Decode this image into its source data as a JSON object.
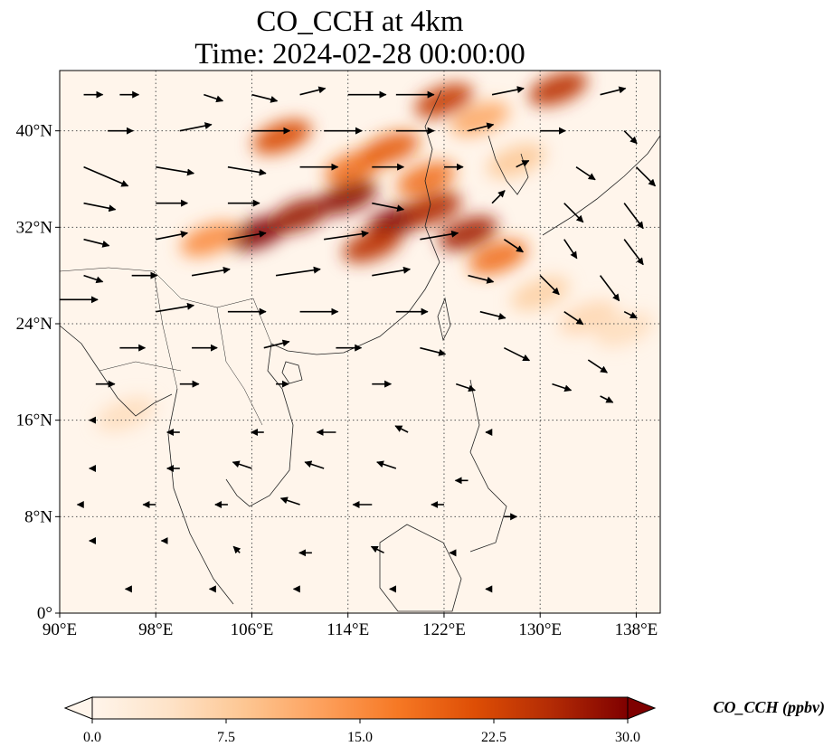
{
  "title": {
    "line1": "CO_CCH at 4km",
    "line2": "Time: 2024-02-28 00:00:00"
  },
  "map": {
    "lon_range": [
      90,
      140
    ],
    "lat_range": [
      0,
      45
    ],
    "lon_ticks": [
      {
        "value": 90,
        "label": "90°E"
      },
      {
        "value": 98,
        "label": "98°E"
      },
      {
        "value": 106,
        "label": "106°E"
      },
      {
        "value": 114,
        "label": "114°E"
      },
      {
        "value": 122,
        "label": "122°E"
      },
      {
        "value": 130,
        "label": "130°E"
      },
      {
        "value": 138,
        "label": "138°E"
      }
    ],
    "lat_ticks": [
      {
        "value": 0,
        "label": "0°"
      },
      {
        "value": 8,
        "label": "8°N"
      },
      {
        "value": 16,
        "label": "16°N"
      },
      {
        "value": 24,
        "label": "24°N"
      },
      {
        "value": 32,
        "label": "32°N"
      },
      {
        "value": 40,
        "label": "40°N"
      }
    ],
    "gridlines": true,
    "background_color": "#fff5eb",
    "plumes": [
      {
        "lon": 106.5,
        "lat": 31.5,
        "value": 30
      },
      {
        "lon": 110.0,
        "lat": 33.0,
        "value": 28
      },
      {
        "lon": 114.0,
        "lat": 34.5,
        "value": 29
      },
      {
        "lon": 118.0,
        "lat": 32.5,
        "value": 30
      },
      {
        "lon": 121.0,
        "lat": 33.5,
        "value": 26
      },
      {
        "lon": 116.0,
        "lat": 30.5,
        "value": 25
      },
      {
        "lon": 124.0,
        "lat": 31.5,
        "value": 27
      },
      {
        "lon": 126.5,
        "lat": 29.5,
        "value": 18
      },
      {
        "lon": 108.5,
        "lat": 39.5,
        "value": 22
      },
      {
        "lon": 114.5,
        "lat": 37.0,
        "value": 18
      },
      {
        "lon": 117.5,
        "lat": 38.5,
        "value": 20
      },
      {
        "lon": 120.5,
        "lat": 36.0,
        "value": 18
      },
      {
        "lon": 122.0,
        "lat": 42.5,
        "value": 24
      },
      {
        "lon": 125.0,
        "lat": 41.0,
        "value": 12
      },
      {
        "lon": 131.5,
        "lat": 43.5,
        "value": 25
      },
      {
        "lon": 128.0,
        "lat": 37.5,
        "value": 8
      },
      {
        "lon": 130.0,
        "lat": 26.5,
        "value": 7
      },
      {
        "lon": 134.0,
        "lat": 24.5,
        "value": 6
      },
      {
        "lon": 137.0,
        "lat": 23.5,
        "value": 5
      },
      {
        "lon": 102.5,
        "lat": 31.0,
        "value": 15
      },
      {
        "lon": 95.5,
        "lat": 16.5,
        "value": 5
      }
    ],
    "wind_vectors": [
      {
        "lon": 92,
        "lat": 43,
        "u": 3,
        "v": 0
      },
      {
        "lon": 95,
        "lat": 43,
        "u": 3,
        "v": 0
      },
      {
        "lon": 102,
        "lat": 43,
        "u": 3,
        "v": -1
      },
      {
        "lon": 106,
        "lat": 43,
        "u": 4,
        "v": -1
      },
      {
        "lon": 110,
        "lat": 43,
        "u": 4,
        "v": 1
      },
      {
        "lon": 114,
        "lat": 43,
        "u": 6,
        "v": 0
      },
      {
        "lon": 118,
        "lat": 43,
        "u": 6,
        "v": 0
      },
      {
        "lon": 126,
        "lat": 43,
        "u": 5,
        "v": 1
      },
      {
        "lon": 135,
        "lat": 43,
        "u": 4,
        "v": 1
      },
      {
        "lon": 94,
        "lat": 40,
        "u": 4,
        "v": 0
      },
      {
        "lon": 100,
        "lat": 40,
        "u": 5,
        "v": 1
      },
      {
        "lon": 106,
        "lat": 40,
        "u": 6,
        "v": 0
      },
      {
        "lon": 112,
        "lat": 40,
        "u": 6,
        "v": 0
      },
      {
        "lon": 118,
        "lat": 40,
        "u": 6,
        "v": 0
      },
      {
        "lon": 124,
        "lat": 40,
        "u": 4,
        "v": 1
      },
      {
        "lon": 130,
        "lat": 40,
        "u": 4,
        "v": 0
      },
      {
        "lon": 137,
        "lat": 40,
        "u": 2,
        "v": -2
      },
      {
        "lon": 92,
        "lat": 37,
        "u": 7,
        "v": -3
      },
      {
        "lon": 98,
        "lat": 37,
        "u": 6,
        "v": -1
      },
      {
        "lon": 104,
        "lat": 37,
        "u": 6,
        "v": -1
      },
      {
        "lon": 110,
        "lat": 37,
        "u": 6,
        "v": 0
      },
      {
        "lon": 116,
        "lat": 37,
        "u": 5,
        "v": 0
      },
      {
        "lon": 122,
        "lat": 37,
        "u": 3,
        "v": 0
      },
      {
        "lon": 128,
        "lat": 37,
        "u": 2,
        "v": 1
      },
      {
        "lon": 133,
        "lat": 37,
        "u": 3,
        "v": -2
      },
      {
        "lon": 138,
        "lat": 37,
        "u": 3,
        "v": -3
      },
      {
        "lon": 92,
        "lat": 34,
        "u": 5,
        "v": -1
      },
      {
        "lon": 98,
        "lat": 34,
        "u": 5,
        "v": 0
      },
      {
        "lon": 104,
        "lat": 34,
        "u": 5,
        "v": 0
      },
      {
        "lon": 116,
        "lat": 34,
        "u": 5,
        "v": -1
      },
      {
        "lon": 126,
        "lat": 34,
        "u": 2,
        "v": 2
      },
      {
        "lon": 132,
        "lat": 34,
        "u": 3,
        "v": -3
      },
      {
        "lon": 137,
        "lat": 34,
        "u": 3,
        "v": -4
      },
      {
        "lon": 92,
        "lat": 31,
        "u": 4,
        "v": -1
      },
      {
        "lon": 98,
        "lat": 31,
        "u": 5,
        "v": 1
      },
      {
        "lon": 104,
        "lat": 31,
        "u": 6,
        "v": 1
      },
      {
        "lon": 112,
        "lat": 31,
        "u": 7,
        "v": 1
      },
      {
        "lon": 120,
        "lat": 31,
        "u": 6,
        "v": 1
      },
      {
        "lon": 127,
        "lat": 31,
        "u": 3,
        "v": -2
      },
      {
        "lon": 132,
        "lat": 31,
        "u": 2,
        "v": -3
      },
      {
        "lon": 137,
        "lat": 31,
        "u": 3,
        "v": -4
      },
      {
        "lon": 92,
        "lat": 28,
        "u": 3,
        "v": -1
      },
      {
        "lon": 96,
        "lat": 28,
        "u": 4,
        "v": 0
      },
      {
        "lon": 101,
        "lat": 28,
        "u": 6,
        "v": 1
      },
      {
        "lon": 108,
        "lat": 28,
        "u": 7,
        "v": 1
      },
      {
        "lon": 116,
        "lat": 28,
        "u": 6,
        "v": 1
      },
      {
        "lon": 124,
        "lat": 28,
        "u": 4,
        "v": -1
      },
      {
        "lon": 130,
        "lat": 28,
        "u": 3,
        "v": -3
      },
      {
        "lon": 135,
        "lat": 28,
        "u": 3,
        "v": -4
      },
      {
        "lon": 90,
        "lat": 26,
        "u": 6,
        "v": 0
      },
      {
        "lon": 98,
        "lat": 25,
        "u": 6,
        "v": 1
      },
      {
        "lon": 104,
        "lat": 25,
        "u": 6,
        "v": 0
      },
      {
        "lon": 110,
        "lat": 25,
        "u": 6,
        "v": 0
      },
      {
        "lon": 118,
        "lat": 25,
        "u": 5,
        "v": 0
      },
      {
        "lon": 125,
        "lat": 25,
        "u": 4,
        "v": -1
      },
      {
        "lon": 132,
        "lat": 25,
        "u": 3,
        "v": -2
      },
      {
        "lon": 137,
        "lat": 25,
        "u": 2,
        "v": -1
      },
      {
        "lon": 95,
        "lat": 22,
        "u": 4,
        "v": 0
      },
      {
        "lon": 101,
        "lat": 22,
        "u": 4,
        "v": 0
      },
      {
        "lon": 107,
        "lat": 22,
        "u": 4,
        "v": 1
      },
      {
        "lon": 113,
        "lat": 22,
        "u": 4,
        "v": 0
      },
      {
        "lon": 120,
        "lat": 22,
        "u": 4,
        "v": -1
      },
      {
        "lon": 127,
        "lat": 22,
        "u": 4,
        "v": -2
      },
      {
        "lon": 134,
        "lat": 21,
        "u": 3,
        "v": -2
      },
      {
        "lon": 93,
        "lat": 19,
        "u": 3,
        "v": 0
      },
      {
        "lon": 100,
        "lat": 19,
        "u": 3,
        "v": 0
      },
      {
        "lon": 108,
        "lat": 19,
        "u": 2,
        "v": 0
      },
      {
        "lon": 116,
        "lat": 19,
        "u": 3,
        "v": 0
      },
      {
        "lon": 123,
        "lat": 19,
        "u": 3,
        "v": -1
      },
      {
        "lon": 131,
        "lat": 19,
        "u": 3,
        "v": -1
      },
      {
        "lon": 135,
        "lat": 18,
        "u": 2,
        "v": -1
      },
      {
        "lon": 93,
        "lat": 16,
        "u": -1,
        "v": 0
      },
      {
        "lon": 100,
        "lat": 15,
        "u": -2,
        "v": 0
      },
      {
        "lon": 107,
        "lat": 15,
        "u": -2,
        "v": 0
      },
      {
        "lon": 113,
        "lat": 15,
        "u": -3,
        "v": 0
      },
      {
        "lon": 119,
        "lat": 15,
        "u": -2,
        "v": 1
      },
      {
        "lon": 126,
        "lat": 15,
        "u": -1,
        "v": 0
      },
      {
        "lon": 93,
        "lat": 12,
        "u": -1,
        "v": 0
      },
      {
        "lon": 100,
        "lat": 12,
        "u": -2,
        "v": 0
      },
      {
        "lon": 106,
        "lat": 12,
        "u": -3,
        "v": 1
      },
      {
        "lon": 112,
        "lat": 12,
        "u": -3,
        "v": 1
      },
      {
        "lon": 118,
        "lat": 12,
        "u": -3,
        "v": 1
      },
      {
        "lon": 124,
        "lat": 11,
        "u": -2,
        "v": 0
      },
      {
        "lon": 92,
        "lat": 9,
        "u": -1,
        "v": 0
      },
      {
        "lon": 98,
        "lat": 9,
        "u": -2,
        "v": 0
      },
      {
        "lon": 104,
        "lat": 9,
        "u": -2,
        "v": 0
      },
      {
        "lon": 110,
        "lat": 9,
        "u": -3,
        "v": 1
      },
      {
        "lon": 116,
        "lat": 9,
        "u": -3,
        "v": 0
      },
      {
        "lon": 122,
        "lat": 9,
        "u": -2,
        "v": 0
      },
      {
        "lon": 127,
        "lat": 8,
        "u": 2,
        "v": 0
      },
      {
        "lon": 93,
        "lat": 6,
        "u": -1,
        "v": 0
      },
      {
        "lon": 99,
        "lat": 6,
        "u": -1,
        "v": 0
      },
      {
        "lon": 105,
        "lat": 5,
        "u": -1,
        "v": 1
      },
      {
        "lon": 111,
        "lat": 5,
        "u": -2,
        "v": 0
      },
      {
        "lon": 117,
        "lat": 5,
        "u": -2,
        "v": 1
      },
      {
        "lon": 123,
        "lat": 5,
        "u": -1,
        "v": 0
      },
      {
        "lon": 96,
        "lat": 2,
        "u": -1,
        "v": 0
      },
      {
        "lon": 103,
        "lat": 2,
        "u": -1,
        "v": 0
      },
      {
        "lon": 110,
        "lat": 2,
        "u": -1,
        "v": 0
      },
      {
        "lon": 118,
        "lat": 2,
        "u": -1,
        "v": 0
      },
      {
        "lon": 126,
        "lat": 2,
        "u": -1,
        "v": 0
      }
    ]
  },
  "colorbar": {
    "label": "CO_CCH (ppbv)",
    "vmin": 0,
    "vmax": 30,
    "extend": "both",
    "ticks": [
      {
        "value": 0,
        "label": "0.0"
      },
      {
        "value": 7.5,
        "label": "7.5"
      },
      {
        "value": 15,
        "label": "15.0"
      },
      {
        "value": 22.5,
        "label": "22.5"
      },
      {
        "value": 30,
        "label": "30.0"
      }
    ],
    "colors": [
      "#fff5eb",
      "#fee3c8",
      "#fdc692",
      "#fda05c",
      "#f67824",
      "#de4e05",
      "#b32b05",
      "#7f0000"
    ]
  }
}
